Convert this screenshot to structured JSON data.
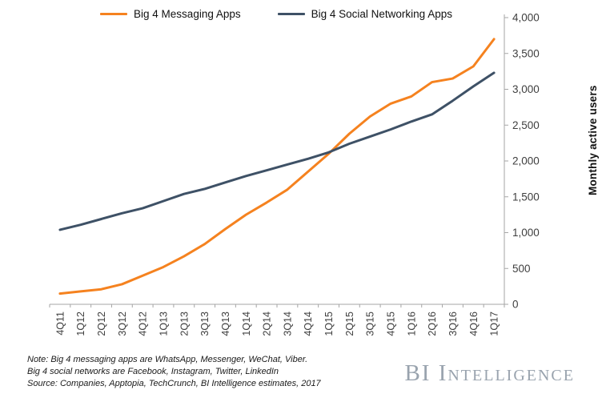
{
  "legend": {
    "items": [
      {
        "label": "Big 4 Messaging Apps",
        "color": "#f5821f"
      },
      {
        "label": "Big 4 Social Networking Apps",
        "color": "#3e5166"
      }
    ]
  },
  "chart_data": {
    "type": "line",
    "categories": [
      "4Q11",
      "1Q12",
      "2Q12",
      "3Q12",
      "4Q12",
      "1Q13",
      "2Q13",
      "3Q13",
      "4Q13",
      "1Q14",
      "2Q14",
      "3Q14",
      "4Q14",
      "1Q15",
      "2Q15",
      "3Q15",
      "4Q15",
      "1Q16",
      "2Q16",
      "3Q16",
      "4Q16",
      "1Q17"
    ],
    "series": [
      {
        "name": "Big 4 Messaging Apps",
        "color": "#f5821f",
        "values": [
          150,
          180,
          210,
          280,
          400,
          520,
          670,
          840,
          1050,
          1250,
          1420,
          1600,
          1850,
          2100,
          2380,
          2620,
          2800,
          2900,
          3100,
          3150,
          3320,
          3700
        ]
      },
      {
        "name": "Big 4 Social Networking Apps",
        "color": "#3e5166",
        "values": [
          1040,
          1110,
          1190,
          1270,
          1340,
          1440,
          1540,
          1610,
          1700,
          1790,
          1870,
          1950,
          2030,
          2120,
          2240,
          2340,
          2440,
          2550,
          2650,
          2840,
          3040,
          3230
        ]
      }
    ],
    "title": "",
    "xlabel": "",
    "ylabel": "Monthly active users",
    "ylim": [
      0,
      4000
    ],
    "ytick_step": 500,
    "ytick_labels": [
      "0",
      "500",
      "1,000",
      "1,500",
      "2,000",
      "2,500",
      "3,000",
      "3,500",
      "4,000"
    ],
    "grid": false,
    "legend_position": "top",
    "y_axis_side": "right"
  },
  "notes": {
    "line1": "Note: Big 4 messaging apps are WhatsApp, Messenger, WeChat, Viber.",
    "line2": "Big 4 social networks are Facebook, Instagram, Twitter, LinkedIn",
    "line3": "Source: Companies,  Apptopia, TechCrunch,  BI Intelligence estimates, 2017"
  },
  "brand": {
    "text": "BI Intelligence"
  },
  "style": {
    "axis_color": "#a6a6a6",
    "tick_label_color": "#3f3f3f"
  }
}
